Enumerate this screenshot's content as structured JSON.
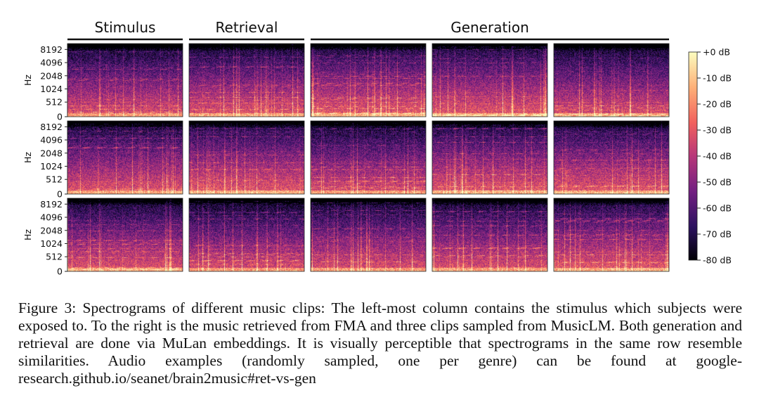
{
  "figure": {
    "column_headers": {
      "stimulus": "Stimulus",
      "retrieval": "Retrieval",
      "generation": "Generation"
    },
    "y_axis_label": "Hz",
    "y_ticks": [
      "8192",
      "4096",
      "2048",
      "1024",
      "512",
      "0"
    ],
    "colorbar_ticks": [
      "+0 dB",
      "-10 dB",
      "-20 dB",
      "-30 dB",
      "-40 dB",
      "-50 dB",
      "-60 dB",
      "-70 dB",
      "-80 dB"
    ],
    "colors": {
      "cmap": [
        "#000004",
        "#2c115f",
        "#721f81",
        "#b73779",
        "#f1605d",
        "#feb078",
        "#fcfdbf"
      ]
    },
    "rows": 3,
    "columns": 5
  },
  "caption": {
    "text": "Figure 3: Spectrograms of different music clips: The left-most column contains the stimulus which subjects were exposed to. To the right is the music retrieved from FMA and three clips sampled from MusicLM. Both generation and retrieval are done via MuLan embeddings. It is visually perceptible that spectrograms in the same row resemble similarities. Audio examples (randomly sampled, one per genre) can be found at google-research.github.io/seanet/brain2music#ret-vs-gen"
  }
}
